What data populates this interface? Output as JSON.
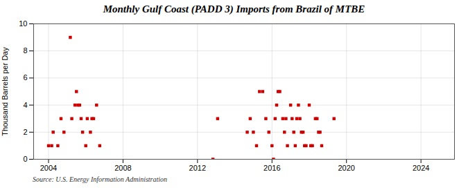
{
  "chart_data": {
    "type": "scatter",
    "title": "Monthly Gulf Coast (PADD 3) Imports from Brazil of MTBE",
    "ylabel": "Thousand Barrels per Day",
    "source": "Source: U.S. Energy Information Administration",
    "color": "#cc0000",
    "marker": "square",
    "grid": true,
    "xlim": [
      2003.2,
      2025.8
    ],
    "xticks": [
      2004,
      2008,
      2012,
      2016,
      2020,
      2024
    ],
    "ylim": [
      0,
      10
    ],
    "yticks": [
      0,
      2,
      4,
      6,
      8,
      10
    ],
    "x": [
      2004.0,
      2004.17,
      2004.25,
      2004.5,
      2004.67,
      2004.83,
      2005.17,
      2005.25,
      2005.42,
      2005.5,
      2005.58,
      2005.67,
      2005.75,
      2005.83,
      2006.0,
      2006.08,
      2006.25,
      2006.33,
      2006.42,
      2006.58,
      2006.75,
      2012.83,
      2013.08,
      2014.67,
      2014.83,
      2015.0,
      2015.17,
      2015.33,
      2015.5,
      2015.67,
      2015.83,
      2016.0,
      2016.08,
      2016.17,
      2016.25,
      2016.33,
      2016.42,
      2016.58,
      2016.67,
      2016.75,
      2016.83,
      2017.0,
      2017.08,
      2017.17,
      2017.25,
      2017.33,
      2017.42,
      2017.5,
      2017.58,
      2017.67,
      2017.75,
      2017.83,
      2018.0,
      2018.08,
      2018.17,
      2018.33,
      2018.42,
      2018.5,
      2018.58,
      2018.67,
      2019.33
    ],
    "values": [
      1,
      1,
      2,
      1,
      3,
      2,
      9,
      3,
      4,
      5,
      4,
      4,
      3,
      2,
      1,
      3,
      2,
      3,
      3,
      4,
      1,
      0,
      3,
      2,
      3,
      2,
      1,
      5,
      5,
      3,
      2,
      1,
      0,
      3,
      4,
      5,
      5,
      3,
      2,
      3,
      1,
      4,
      3,
      2,
      1,
      3,
      4,
      3,
      2,
      2,
      1,
      1,
      4,
      1,
      1,
      3,
      3,
      2,
      2,
      1,
      3
    ]
  }
}
